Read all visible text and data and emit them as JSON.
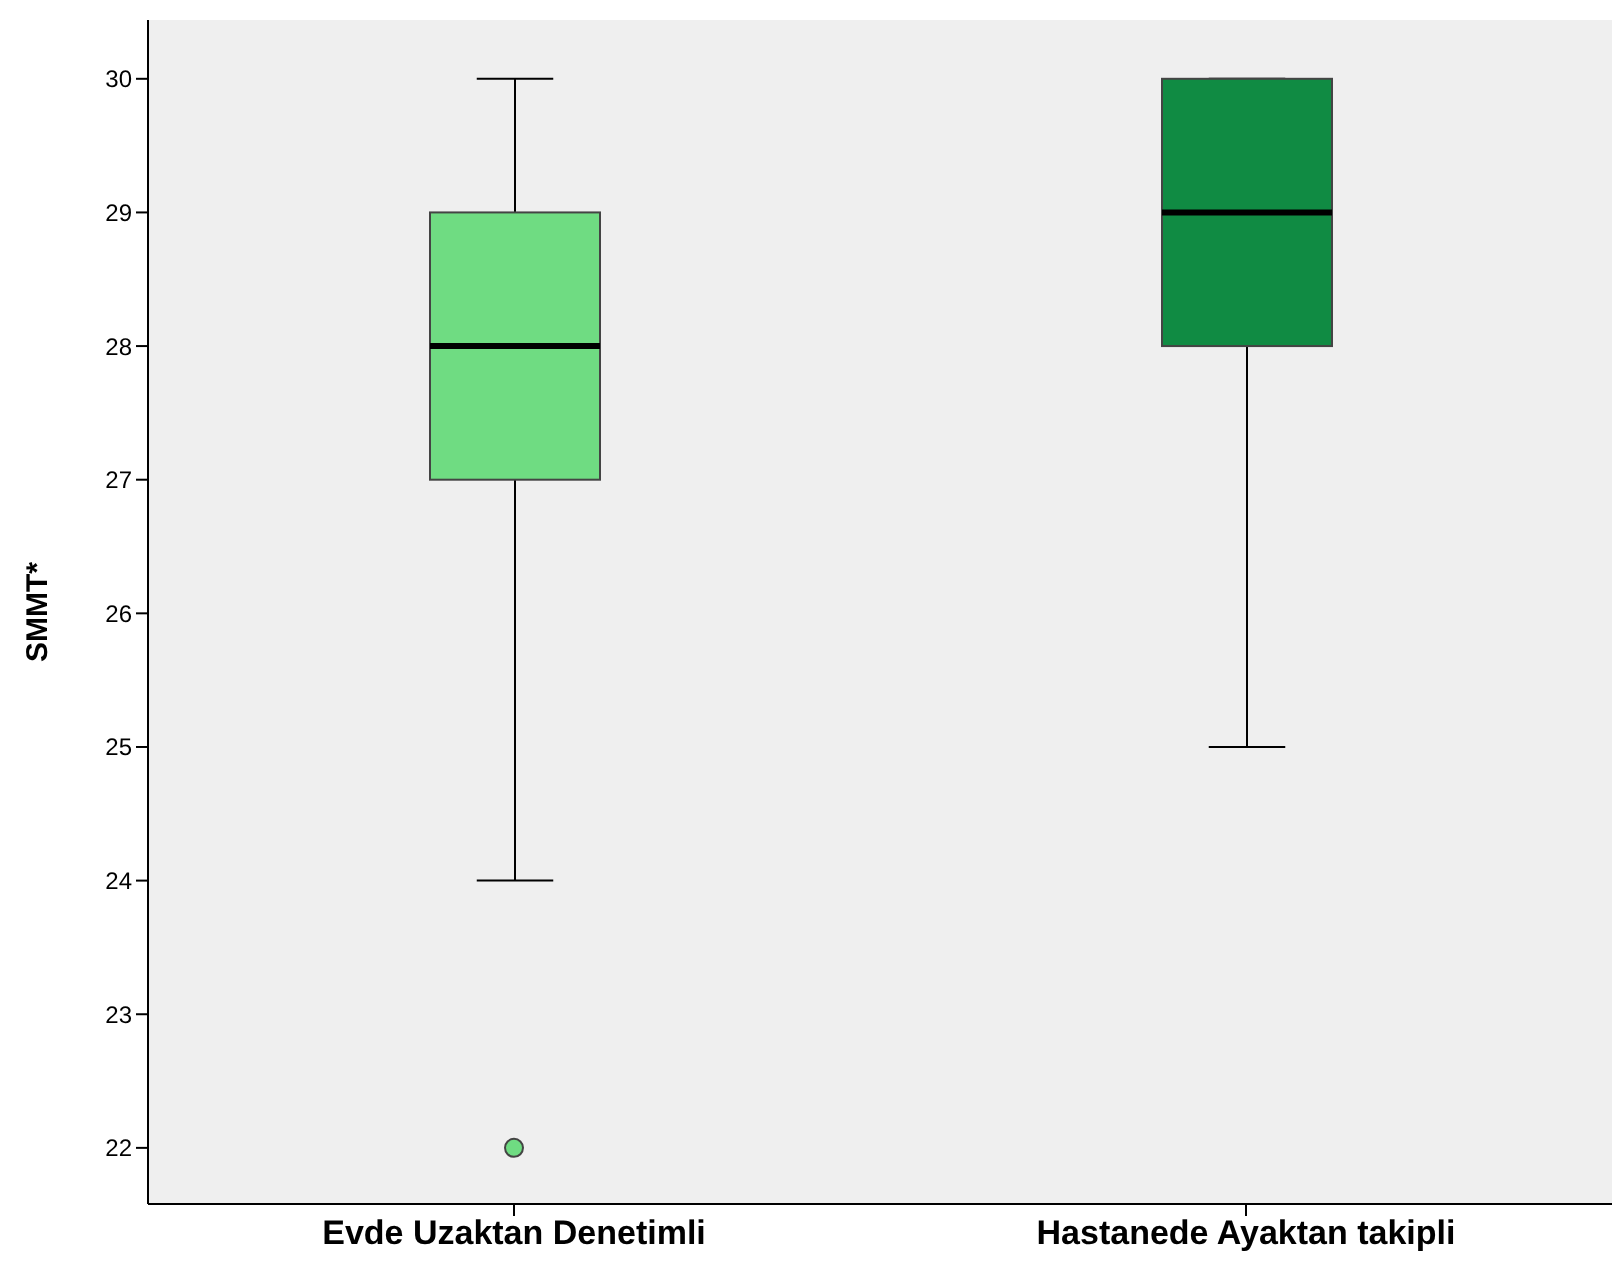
{
  "chart_data": {
    "type": "box",
    "ylabel": "SMMT*",
    "categories": [
      "Evde Uzaktan Denetimli",
      "Hastanede Ayaktan takipli"
    ],
    "colors": [
      "#6fdc82",
      "#108b43"
    ],
    "boxes": [
      {
        "low": 24,
        "q1": 27,
        "median": 28,
        "q3": 29,
        "high": 30,
        "outliers": [
          22
        ]
      },
      {
        "low": 25,
        "q1": 28,
        "median": 29,
        "q3": 30,
        "high": 30
      }
    ],
    "ylim": [
      21.58,
      30.44
    ],
    "yticks": [
      22,
      23,
      24,
      25,
      26,
      27,
      28,
      29,
      30
    ],
    "grid": false,
    "legend": false
  }
}
